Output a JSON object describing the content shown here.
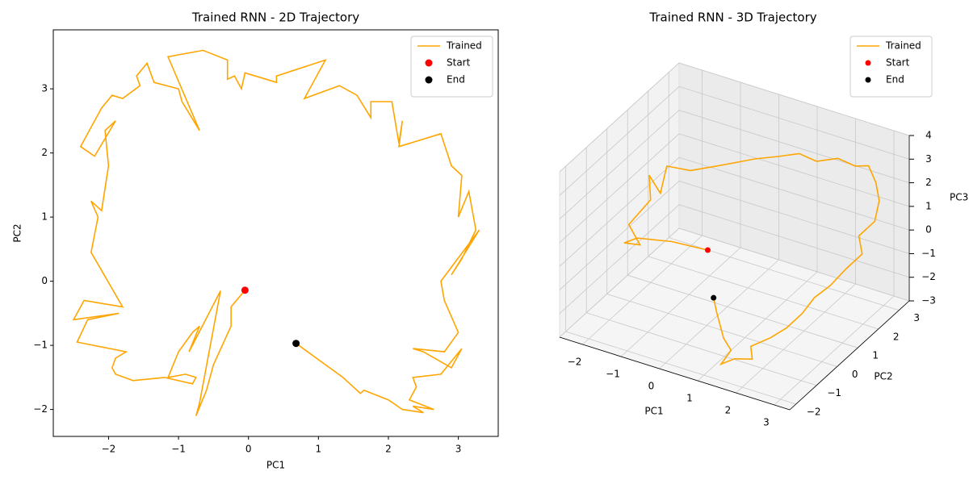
{
  "chart_data": [
    {
      "type": "line",
      "title": "Trained RNN - 2D Trajectory",
      "x_label": "PC1",
      "y_label": "PC2",
      "xlim": [
        -2.79,
        3.57
      ],
      "ylim": [
        -2.42,
        3.92
      ],
      "xticks": [
        {
          "value": -2,
          "label": "−2"
        },
        {
          "value": -1,
          "label": "−1"
        },
        0,
        1,
        2,
        3
      ],
      "yticks": [
        {
          "value": -2,
          "label": "−2"
        },
        {
          "value": -1,
          "label": "−1"
        },
        0,
        1,
        2,
        3
      ],
      "legend": "upper right",
      "series": [
        {
          "name": "Trained",
          "kind": "line",
          "color": "#ffa500",
          "x": [
            -0.05,
            -0.25,
            -0.25,
            -0.5,
            -0.6,
            -0.75,
            -0.7,
            -0.4,
            -0.85,
            -0.7,
            -0.8,
            -1.0,
            -1.15,
            -0.9,
            -0.75,
            -0.8,
            -1.2,
            -1.65,
            -1.9,
            -1.95,
            -1.9,
            -1.75,
            -2.45,
            -2.3,
            -1.85,
            -2.5,
            -2.35,
            -1.8,
            -2.25,
            -2.15,
            -2.25,
            -2.1,
            -2.0,
            -2.05,
            -1.9,
            -2.2,
            -2.4,
            -2.25,
            -2.1,
            -1.95,
            -1.8,
            -1.55,
            -1.6,
            -1.45,
            -1.35,
            -1.0,
            -0.95,
            -0.7,
            -1.15,
            -0.65,
            -0.3,
            -0.3,
            -0.2,
            -0.1,
            -0.05,
            0.4,
            0.4,
            1.1,
            0.8,
            1.3,
            1.55,
            1.75,
            1.75,
            2.05,
            2.15,
            2.2,
            2.15,
            2.75,
            2.9,
            3.05,
            3.0,
            3.15,
            3.25,
            3.05,
            2.9,
            3.3,
            2.75,
            2.8,
            3.0,
            2.8,
            2.35,
            2.5,
            2.9,
            3.05,
            2.75,
            2.35,
            2.4,
            2.3,
            2.65,
            2.35,
            2.5,
            2.2,
            2.0,
            1.65,
            1.6,
            1.4,
            1.35,
            0.68
          ],
          "y": [
            -0.14,
            -0.4,
            -0.7,
            -1.3,
            -1.7,
            -2.1,
            -1.9,
            -0.15,
            -1.1,
            -0.7,
            -0.8,
            -1.1,
            -1.5,
            -1.45,
            -1.5,
            -1.6,
            -1.5,
            -1.55,
            -1.45,
            -1.35,
            -1.2,
            -1.1,
            -0.95,
            -0.6,
            -0.5,
            -0.6,
            -0.3,
            -0.4,
            0.45,
            1.0,
            1.25,
            1.1,
            1.8,
            2.35,
            2.5,
            1.95,
            2.1,
            2.4,
            2.7,
            2.9,
            2.85,
            3.05,
            3.2,
            3.4,
            3.1,
            3.0,
            2.8,
            2.35,
            3.5,
            3.6,
            3.45,
            3.15,
            3.2,
            3.0,
            3.25,
            3.1,
            3.2,
            3.45,
            2.85,
            3.05,
            2.9,
            2.55,
            2.8,
            2.8,
            2.15,
            2.5,
            2.1,
            2.3,
            1.8,
            1.65,
            1.0,
            1.4,
            0.8,
            0.35,
            0.1,
            0.8,
            0.0,
            -0.3,
            -0.8,
            -1.1,
            -1.05,
            -1.1,
            -1.35,
            -1.05,
            -1.45,
            -1.5,
            -1.65,
            -1.85,
            -2.0,
            -1.95,
            -2.05,
            -2.0,
            -1.85,
            -1.7,
            -1.75,
            -1.55,
            -1.5,
            -0.97
          ]
        },
        {
          "name": "Start",
          "kind": "point",
          "color": "#ff0000",
          "x": [
            -0.05
          ],
          "y": [
            -0.14
          ]
        },
        {
          "name": "End",
          "kind": "point",
          "color": "#000000",
          "x": [
            0.68
          ],
          "y": [
            -0.97
          ]
        }
      ]
    },
    {
      "type": "line3d",
      "title": "Trained RNN - 3D Trajectory",
      "x_label": "PC1",
      "y_label": "PC2",
      "z_label": "PC3",
      "xlim": [
        -2.6,
        3.4
      ],
      "ylim": [
        -2.3,
        3.5
      ],
      "zlim": [
        -3,
        4
      ],
      "xticks": [
        {
          "value": -2,
          "label": "−2"
        },
        {
          "value": -1,
          "label": "−1"
        },
        0,
        1,
        2,
        3
      ],
      "yticks": [
        {
          "value": -2,
          "label": "−2"
        },
        {
          "value": -1,
          "label": "−1"
        },
        0,
        1,
        2,
        3
      ],
      "zticks": [
        {
          "value": -3,
          "label": "−3"
        },
        {
          "value": -2,
          "label": "−2"
        },
        {
          "value": -1,
          "label": "−1"
        },
        0,
        1,
        2,
        3,
        4
      ],
      "legend": "upper right",
      "series": [
        {
          "name": "Trained",
          "kind": "line",
          "color": "#ffa500",
          "x": [
            0,
            -0.8,
            -1.6,
            -2.1,
            -1.9,
            -2.3,
            -2.0,
            -2.2,
            -1.8,
            -1.9,
            -1.5,
            -1.0,
            -0.6,
            -0.2,
            0.3,
            0.8,
            1.2,
            1.7,
            2.1,
            2.5,
            2.8,
            3.1,
            3.2,
            3.0,
            3.3,
            3.1,
            2.9,
            2.7,
            2.6,
            2.4,
            2.2,
            1.9,
            2.1,
            1.8,
            1.5,
            1.6,
            1.3,
            1.1,
            0.9,
            0.7
          ],
          "y": [
            0.05,
            -0.2,
            -0.4,
            -0.1,
            0.3,
            0.5,
            1.0,
            1.3,
            1.1,
            1.6,
            2.0,
            2.3,
            2.5,
            2.7,
            2.9,
            3.0,
            3.1,
            3.2,
            3.3,
            3.2,
            3.0,
            2.6,
            2.2,
            1.8,
            1.4,
            1.0,
            0.6,
            0.2,
            -0.2,
            -0.6,
            -1.0,
            -1.4,
            -1.7,
            -2.0,
            -2.1,
            -1.8,
            -1.6,
            -1.4,
            -1.2,
            -0.97
          ],
          "z": [
            0.15,
            0.3,
            0.2,
            -0.5,
            -0.8,
            -0.3,
            0.5,
            1.2,
            0.8,
            1.5,
            1.2,
            1.4,
            1.6,
            1.8,
            2.0,
            2.3,
            2.1,
            2.4,
            2.2,
            2.5,
            2.1,
            1.8,
            1.3,
            0.9,
            0.6,
            0.2,
            -0.3,
            -0.6,
            -1.0,
            -1.4,
            -1.6,
            -1.8,
            -2.0,
            -1.9,
            -2.2,
            -1.8,
            -1.6,
            -1.3,
            -1.0,
            -0.7
          ]
        },
        {
          "name": "Start",
          "kind": "point",
          "color": "#ff0000",
          "x": [
            0
          ],
          "y": [
            0.05
          ],
          "z": [
            0.15
          ]
        },
        {
          "name": "End",
          "kind": "point",
          "color": "#000000",
          "x": [
            0.7
          ],
          "y": [
            -0.97
          ],
          "z": [
            -0.7
          ]
        }
      ]
    }
  ]
}
